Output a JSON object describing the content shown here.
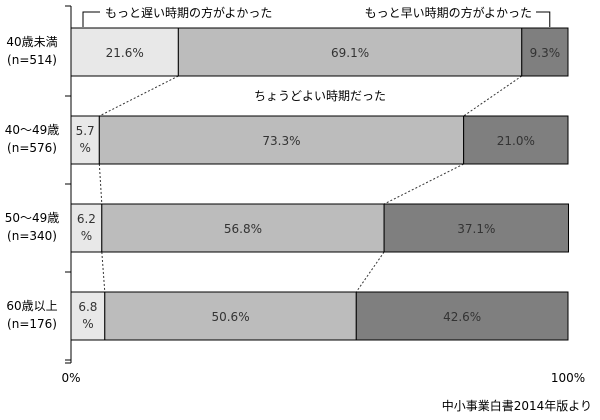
{
  "chart_data": {
    "type": "bar",
    "stacked_percent": true,
    "orientation": "horizontal",
    "categories": [
      "40歳未満",
      "40～49歳",
      "50～49歳",
      "60歳以上"
    ],
    "category_counts": [
      "(n=514)",
      "(n=576)",
      "(n=340)",
      "(n=176)"
    ],
    "series": [
      {
        "name": "もっと遅い時期の方がよかった",
        "values": [
          21.6,
          5.7,
          6.2,
          6.8
        ],
        "labels": [
          "21.6%",
          "5.7%",
          "6.2%",
          "6.8%"
        ],
        "color": "#e8e8e8"
      },
      {
        "name": "ちょうどよい時期だった",
        "values": [
          69.1,
          73.3,
          56.8,
          50.6
        ],
        "labels": [
          "69.1%",
          "73.3%",
          "56.8%",
          "50.6%"
        ],
        "color": "#bcbcbc"
      },
      {
        "name": "もっと早い時期の方がよかった",
        "values": [
          9.3,
          21.0,
          37.1,
          42.6
        ],
        "labels": [
          "9.3%",
          "21.0%",
          "37.1%",
          "42.6%"
        ],
        "color": "#7f7f7f"
      }
    ],
    "xlim": [
      0,
      100
    ],
    "x_tick_labels": [
      "0%",
      "100%"
    ],
    "legend": "annotations above and between bars",
    "grid": false
  },
  "source_note": "中小事業白書2014年版より"
}
